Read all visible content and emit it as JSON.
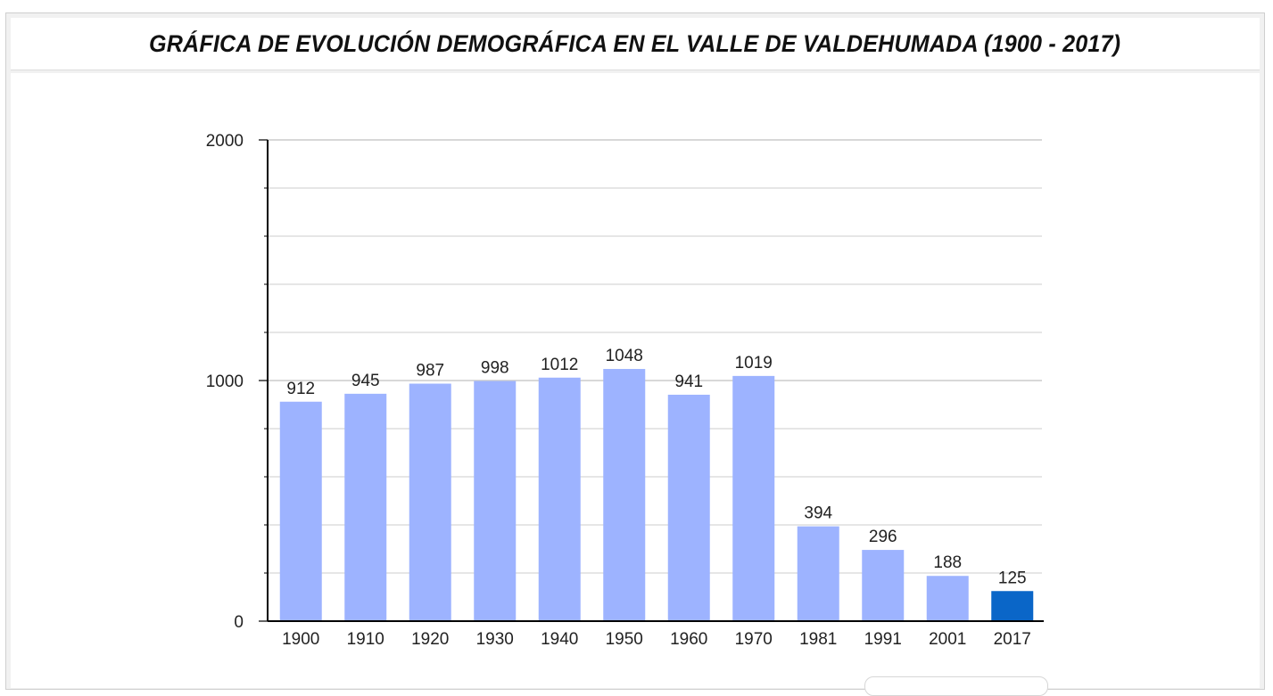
{
  "page": {
    "title": "GRÁFICA DE EVOLUCIÓN DEMOGRÁFICA EN EL VALLE DE VALDEHUMADA (1900 - 2017)"
  },
  "colors": {
    "bar": "#9db3ff",
    "bar_highlight": "#0a66c8",
    "grid": "#cccccc",
    "axis": "#000000"
  },
  "chart_data": {
    "type": "bar",
    "title": "GRÁFICA DE EVOLUCIÓN DEMOGRÁFICA EN EL VALLE DE VALDEHUMADA (1900 - 2017)",
    "xlabel": "",
    "ylabel": "",
    "ylim": [
      0,
      2000
    ],
    "yticks": [
      0,
      1000,
      2000
    ],
    "grid": true,
    "legend": "none",
    "categories": [
      "1900",
      "1910",
      "1920",
      "1930",
      "1940",
      "1950",
      "1960",
      "1970",
      "1981",
      "1991",
      "2001",
      "2017"
    ],
    "values": [
      912,
      945,
      987,
      998,
      1012,
      1048,
      941,
      1019,
      394,
      296,
      188,
      125
    ],
    "highlight_category": "2017"
  }
}
